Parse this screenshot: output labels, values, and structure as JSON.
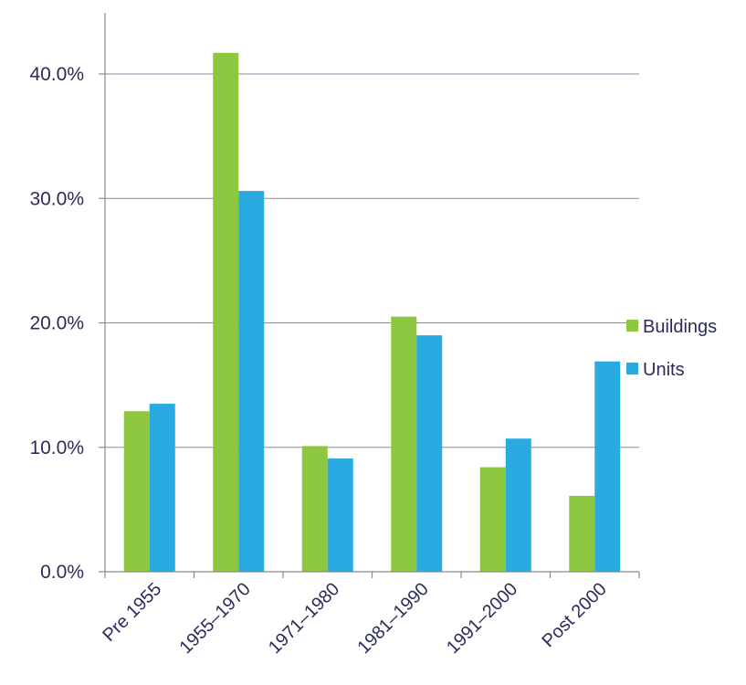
{
  "chart_data": {
    "type": "bar",
    "categories": [
      "Pre 1955",
      "1955–1970",
      "1971–1980",
      "1981–1990",
      "1991–2000",
      "Post 2000"
    ],
    "series": [
      {
        "name": "Buildings",
        "values": [
          12.9,
          41.7,
          10.1,
          20.5,
          8.4,
          6.1
        ],
        "color": "#8dc63f"
      },
      {
        "name": "Units",
        "values": [
          13.5,
          30.6,
          9.1,
          19.0,
          10.7,
          16.9
        ],
        "color": "#29abe2"
      }
    ],
    "ylim": [
      0,
      40
    ],
    "yticks": [
      "0.0%",
      "10.0%",
      "20.0%",
      "30.0%",
      "40.0%"
    ],
    "grid": true,
    "legend_position": "right"
  }
}
